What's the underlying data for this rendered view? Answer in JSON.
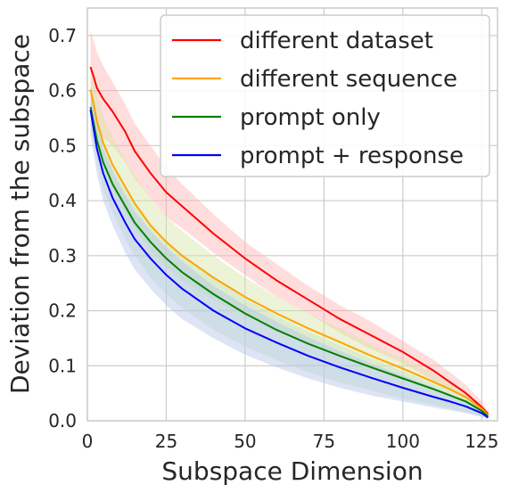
{
  "chart_data": {
    "type": "line",
    "title": "",
    "xlabel": "Subspace Dimension",
    "ylabel": "Deviation from the subspace",
    "xlim": [
      0,
      130
    ],
    "ylim": [
      0,
      0.75
    ],
    "xticks": [
      0,
      25,
      50,
      75,
      100,
      125
    ],
    "yticks": [
      0.0,
      0.1,
      0.2,
      0.3,
      0.4,
      0.5,
      0.6,
      0.7
    ],
    "grid": true,
    "legend_position": "top-right",
    "series": [
      {
        "name": "different dataset",
        "color": "#ff0000",
        "band_color": "#ffb3b3",
        "x": [
          1,
          2,
          3,
          5,
          8,
          12,
          15,
          20,
          25,
          30,
          40,
          50,
          60,
          70,
          80,
          90,
          100,
          110,
          115,
          120,
          125,
          127
        ],
        "y": [
          0.643,
          0.625,
          0.605,
          0.585,
          0.562,
          0.525,
          0.49,
          0.45,
          0.415,
          0.39,
          0.34,
          0.295,
          0.255,
          0.22,
          0.185,
          0.155,
          0.125,
          0.09,
          0.07,
          0.05,
          0.025,
          0.012
        ],
        "band_upper": [
          0.71,
          0.69,
          0.67,
          0.645,
          0.615,
          0.575,
          0.54,
          0.5,
          0.46,
          0.43,
          0.375,
          0.325,
          0.285,
          0.245,
          0.21,
          0.18,
          0.145,
          0.11,
          0.088,
          0.065,
          0.035,
          0.018
        ],
        "band_lower": [
          0.56,
          0.545,
          0.53,
          0.515,
          0.5,
          0.47,
          0.44,
          0.405,
          0.37,
          0.35,
          0.305,
          0.265,
          0.225,
          0.195,
          0.16,
          0.13,
          0.105,
          0.072,
          0.055,
          0.038,
          0.018,
          0.008
        ]
      },
      {
        "name": "different sequence",
        "color": "#ffa500",
        "band_color": "#d7e5a5",
        "x": [
          1,
          2,
          3,
          5,
          8,
          12,
          15,
          20,
          25,
          30,
          40,
          50,
          60,
          70,
          80,
          90,
          100,
          110,
          115,
          120,
          125,
          127
        ],
        "y": [
          0.602,
          0.575,
          0.545,
          0.505,
          0.465,
          0.425,
          0.395,
          0.355,
          0.325,
          0.3,
          0.26,
          0.225,
          0.195,
          0.168,
          0.143,
          0.118,
          0.095,
          0.07,
          0.057,
          0.043,
          0.022,
          0.01
        ],
        "band_upper": [
          0.64,
          0.615,
          0.59,
          0.555,
          0.515,
          0.475,
          0.445,
          0.405,
          0.37,
          0.345,
          0.3,
          0.26,
          0.225,
          0.195,
          0.168,
          0.14,
          0.113,
          0.085,
          0.07,
          0.052,
          0.028,
          0.014
        ],
        "band_lower": [
          0.555,
          0.53,
          0.5,
          0.46,
          0.42,
          0.38,
          0.35,
          0.31,
          0.28,
          0.255,
          0.22,
          0.19,
          0.165,
          0.142,
          0.118,
          0.096,
          0.076,
          0.055,
          0.044,
          0.033,
          0.016,
          0.007
        ]
      },
      {
        "name": "prompt only",
        "color": "#008000",
        "band_color": "#c6e6c6",
        "x": [
          1,
          2,
          3,
          5,
          8,
          12,
          15,
          20,
          25,
          30,
          40,
          50,
          60,
          70,
          80,
          90,
          100,
          110,
          115,
          120,
          125,
          127
        ],
        "y": [
          0.57,
          0.54,
          0.51,
          0.47,
          0.43,
          0.39,
          0.36,
          0.325,
          0.295,
          0.27,
          0.23,
          0.195,
          0.165,
          0.14,
          0.118,
          0.097,
          0.077,
          0.057,
          0.046,
          0.035,
          0.018,
          0.008
        ],
        "band_upper": [
          0.6,
          0.57,
          0.54,
          0.5,
          0.46,
          0.42,
          0.39,
          0.355,
          0.325,
          0.3,
          0.26,
          0.222,
          0.19,
          0.162,
          0.137,
          0.113,
          0.09,
          0.067,
          0.054,
          0.041,
          0.021,
          0.01
        ],
        "band_lower": [
          0.53,
          0.5,
          0.47,
          0.42,
          0.38,
          0.33,
          0.3,
          0.26,
          0.23,
          0.205,
          0.165,
          0.135,
          0.11,
          0.088,
          0.07,
          0.055,
          0.04,
          0.028,
          0.022,
          0.016,
          0.008,
          0.004
        ]
      },
      {
        "name": "prompt + response",
        "color": "#0000ff",
        "band_color": "#b3c3e6",
        "x": [
          1,
          2,
          3,
          5,
          8,
          12,
          15,
          20,
          25,
          30,
          40,
          50,
          60,
          70,
          80,
          90,
          100,
          110,
          115,
          120,
          125,
          127
        ],
        "y": [
          0.565,
          0.53,
          0.495,
          0.45,
          0.405,
          0.36,
          0.33,
          0.295,
          0.265,
          0.24,
          0.2,
          0.168,
          0.142,
          0.118,
          0.097,
          0.078,
          0.06,
          0.043,
          0.035,
          0.026,
          0.014,
          0.006
        ],
        "band_upper": [
          0.595,
          0.565,
          0.535,
          0.495,
          0.455,
          0.41,
          0.38,
          0.345,
          0.315,
          0.29,
          0.245,
          0.21,
          0.18,
          0.152,
          0.127,
          0.104,
          0.082,
          0.06,
          0.048,
          0.036,
          0.019,
          0.009
        ],
        "band_lower": [
          0.52,
          0.485,
          0.45,
          0.4,
          0.355,
          0.305,
          0.275,
          0.24,
          0.21,
          0.185,
          0.15,
          0.12,
          0.097,
          0.077,
          0.06,
          0.046,
          0.035,
          0.024,
          0.019,
          0.014,
          0.007,
          0.003
        ]
      }
    ]
  }
}
